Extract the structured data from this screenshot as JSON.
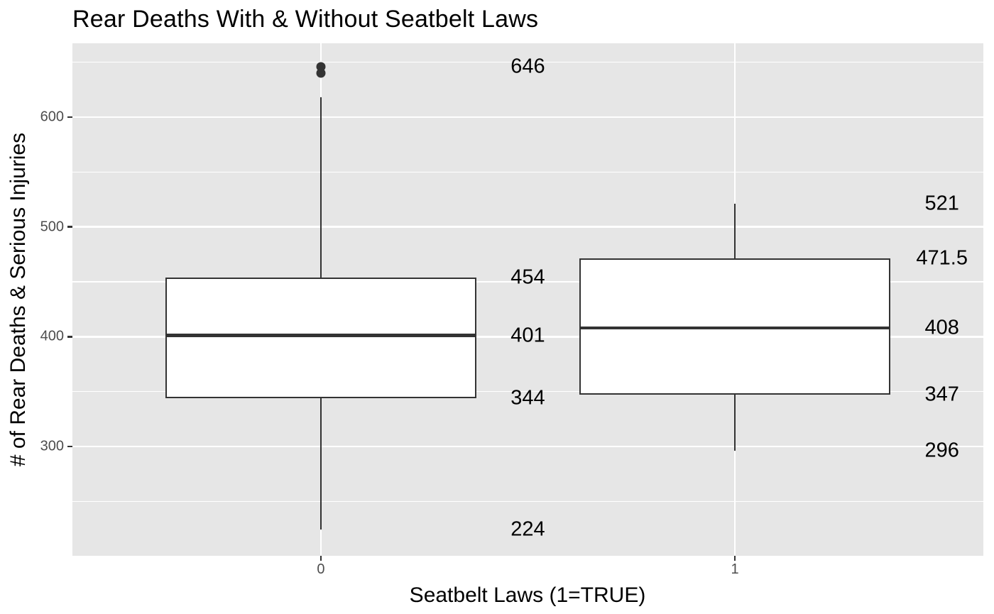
{
  "chart_data": {
    "type": "boxplot",
    "title": "Rear Deaths With & Without Seatbelt Laws",
    "xlabel": "Seatbelt Laws (1=TRUE)",
    "ylabel": "# of Rear Deaths & Serious Injuries",
    "categories": [
      "0",
      "1"
    ],
    "ylim": [
      200.4,
      667.2
    ],
    "y_major_ticks": [
      300,
      400,
      500,
      600
    ],
    "y_minor_gridlines": [
      250,
      350,
      450,
      550,
      650
    ],
    "grid": true,
    "legend": false,
    "series": [
      {
        "category": "0",
        "q1": 344,
        "median": 401,
        "q3": 454,
        "whisker_low": 224,
        "whisker_high": 618,
        "outliers": [
          640,
          646
        ],
        "stat_labels": [
          {
            "text": "646",
            "value": 646
          },
          {
            "text": "454",
            "value": 454
          },
          {
            "text": "401",
            "value": 401
          },
          {
            "text": "344",
            "value": 344
          },
          {
            "text": "224",
            "value": 224
          }
        ]
      },
      {
        "category": "1",
        "q1": 347,
        "median": 408,
        "q3": 471.5,
        "whisker_low": 296,
        "whisker_high": 521,
        "outliers": [],
        "stat_labels": [
          {
            "text": "521",
            "value": 521
          },
          {
            "text": "471.5",
            "value": 471.5
          },
          {
            "text": "408",
            "value": 408
          },
          {
            "text": "347",
            "value": 347
          },
          {
            "text": "296",
            "value": 296
          }
        ]
      }
    ]
  },
  "colors": {
    "panel_background": "#E6E6E6",
    "gridline": "#FFFFFF",
    "box_stroke": "#333333",
    "box_fill": "#FFFFFF",
    "tick_label": "#4D4D4D",
    "text": "#000000"
  }
}
